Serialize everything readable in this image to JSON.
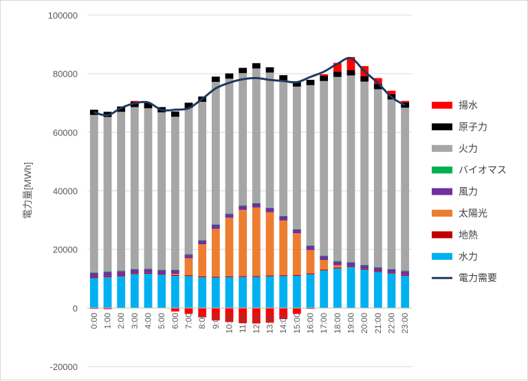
{
  "chart_data": {
    "type": "bar",
    "stacked": true,
    "ylabel": "電力量[MWh]",
    "ylim": [
      -20000,
      100000
    ],
    "ytick_step": 20000,
    "grid": true,
    "legend_position": "right",
    "categories": [
      "0:00",
      "1:00",
      "2:00",
      "3:00",
      "4:00",
      "5:00",
      "6:00",
      "7:00",
      "8:00",
      "9:00",
      "10:00",
      "11:00",
      "12:00",
      "13:00",
      "14:00",
      "15:00",
      "16:00",
      "17:00",
      "18:00",
      "19:00",
      "20:00",
      "21:00",
      "22:00",
      "23:00"
    ],
    "series": [
      {
        "name": "揚水",
        "color": "#ff0000",
        "values": [
          -300,
          -400,
          0,
          300,
          0,
          0,
          -1200,
          -2000,
          -3200,
          -4200,
          -4800,
          -5200,
          -5300,
          -5000,
          -3800,
          -2000,
          -300,
          500,
          3000,
          4500,
          3500,
          2000,
          1200,
          500
        ]
      },
      {
        "name": "原子力",
        "color": "#000000",
        "values": [
          1800,
          1800,
          1800,
          1800,
          1800,
          1800,
          1800,
          1800,
          1800,
          1800,
          1800,
          1800,
          1800,
          1800,
          1800,
          1800,
          1800,
          1800,
          1800,
          1800,
          1800,
          1800,
          1800,
          1800
        ]
      },
      {
        "name": "火力",
        "color": "#a6a6a6",
        "values": [
          53700,
          52700,
          54200,
          55200,
          54700,
          53700,
          52200,
          49900,
          47200,
          48600,
          46000,
          45100,
          45900,
          46100,
          46200,
          48600,
          54700,
          59600,
          62800,
          63700,
          62500,
          60700,
          57800,
          55600
        ]
      },
      {
        "name": "バイオマス",
        "color": "#00b050",
        "values": [
          200,
          200,
          200,
          200,
          200,
          200,
          200,
          200,
          200,
          200,
          200,
          200,
          200,
          200,
          200,
          200,
          200,
          200,
          200,
          200,
          200,
          200,
          200,
          200
        ]
      },
      {
        "name": "風力",
        "color": "#7030a0",
        "values": [
          1500,
          1500,
          1500,
          1300,
          1300,
          1200,
          1200,
          1200,
          1200,
          1400,
          1300,
          1400,
          1400,
          1400,
          1400,
          1300,
          1400,
          1300,
          1300,
          1200,
          1200,
          1200,
          1100,
          1300
        ]
      },
      {
        "name": "太陽光",
        "color": "#ed7d31",
        "values": [
          0,
          0,
          0,
          0,
          0,
          0,
          400,
          5800,
          11000,
          16300,
          20000,
          22600,
          23400,
          21600,
          18700,
          14200,
          8000,
          3300,
          800,
          0,
          0,
          0,
          0,
          0
        ]
      },
      {
        "name": "地熱",
        "color": "#c00000",
        "values": [
          300,
          300,
          300,
          300,
          300,
          300,
          300,
          300,
          300,
          300,
          300,
          300,
          300,
          300,
          300,
          300,
          300,
          300,
          300,
          300,
          300,
          300,
          300,
          300
        ]
      },
      {
        "name": "水力",
        "color": "#00b0f0",
        "values": [
          10200,
          10500,
          10800,
          11600,
          11700,
          11400,
          11000,
          10900,
          10500,
          10400,
          10500,
          10600,
          10600,
          10800,
          10900,
          11000,
          11500,
          12800,
          13500,
          14000,
          13100,
          12300,
          11800,
          11000
        ]
      }
    ],
    "line": {
      "name": "電力需要",
      "color": "#1f3864",
      "values": [
        66800,
        65800,
        68300,
        69900,
        70200,
        67600,
        67700,
        68200,
        71400,
        75000,
        76900,
        78100,
        78500,
        77900,
        77500,
        77100,
        78900,
        80700,
        83400,
        85300,
        80800,
        76800,
        72000,
        69200
      ]
    }
  }
}
